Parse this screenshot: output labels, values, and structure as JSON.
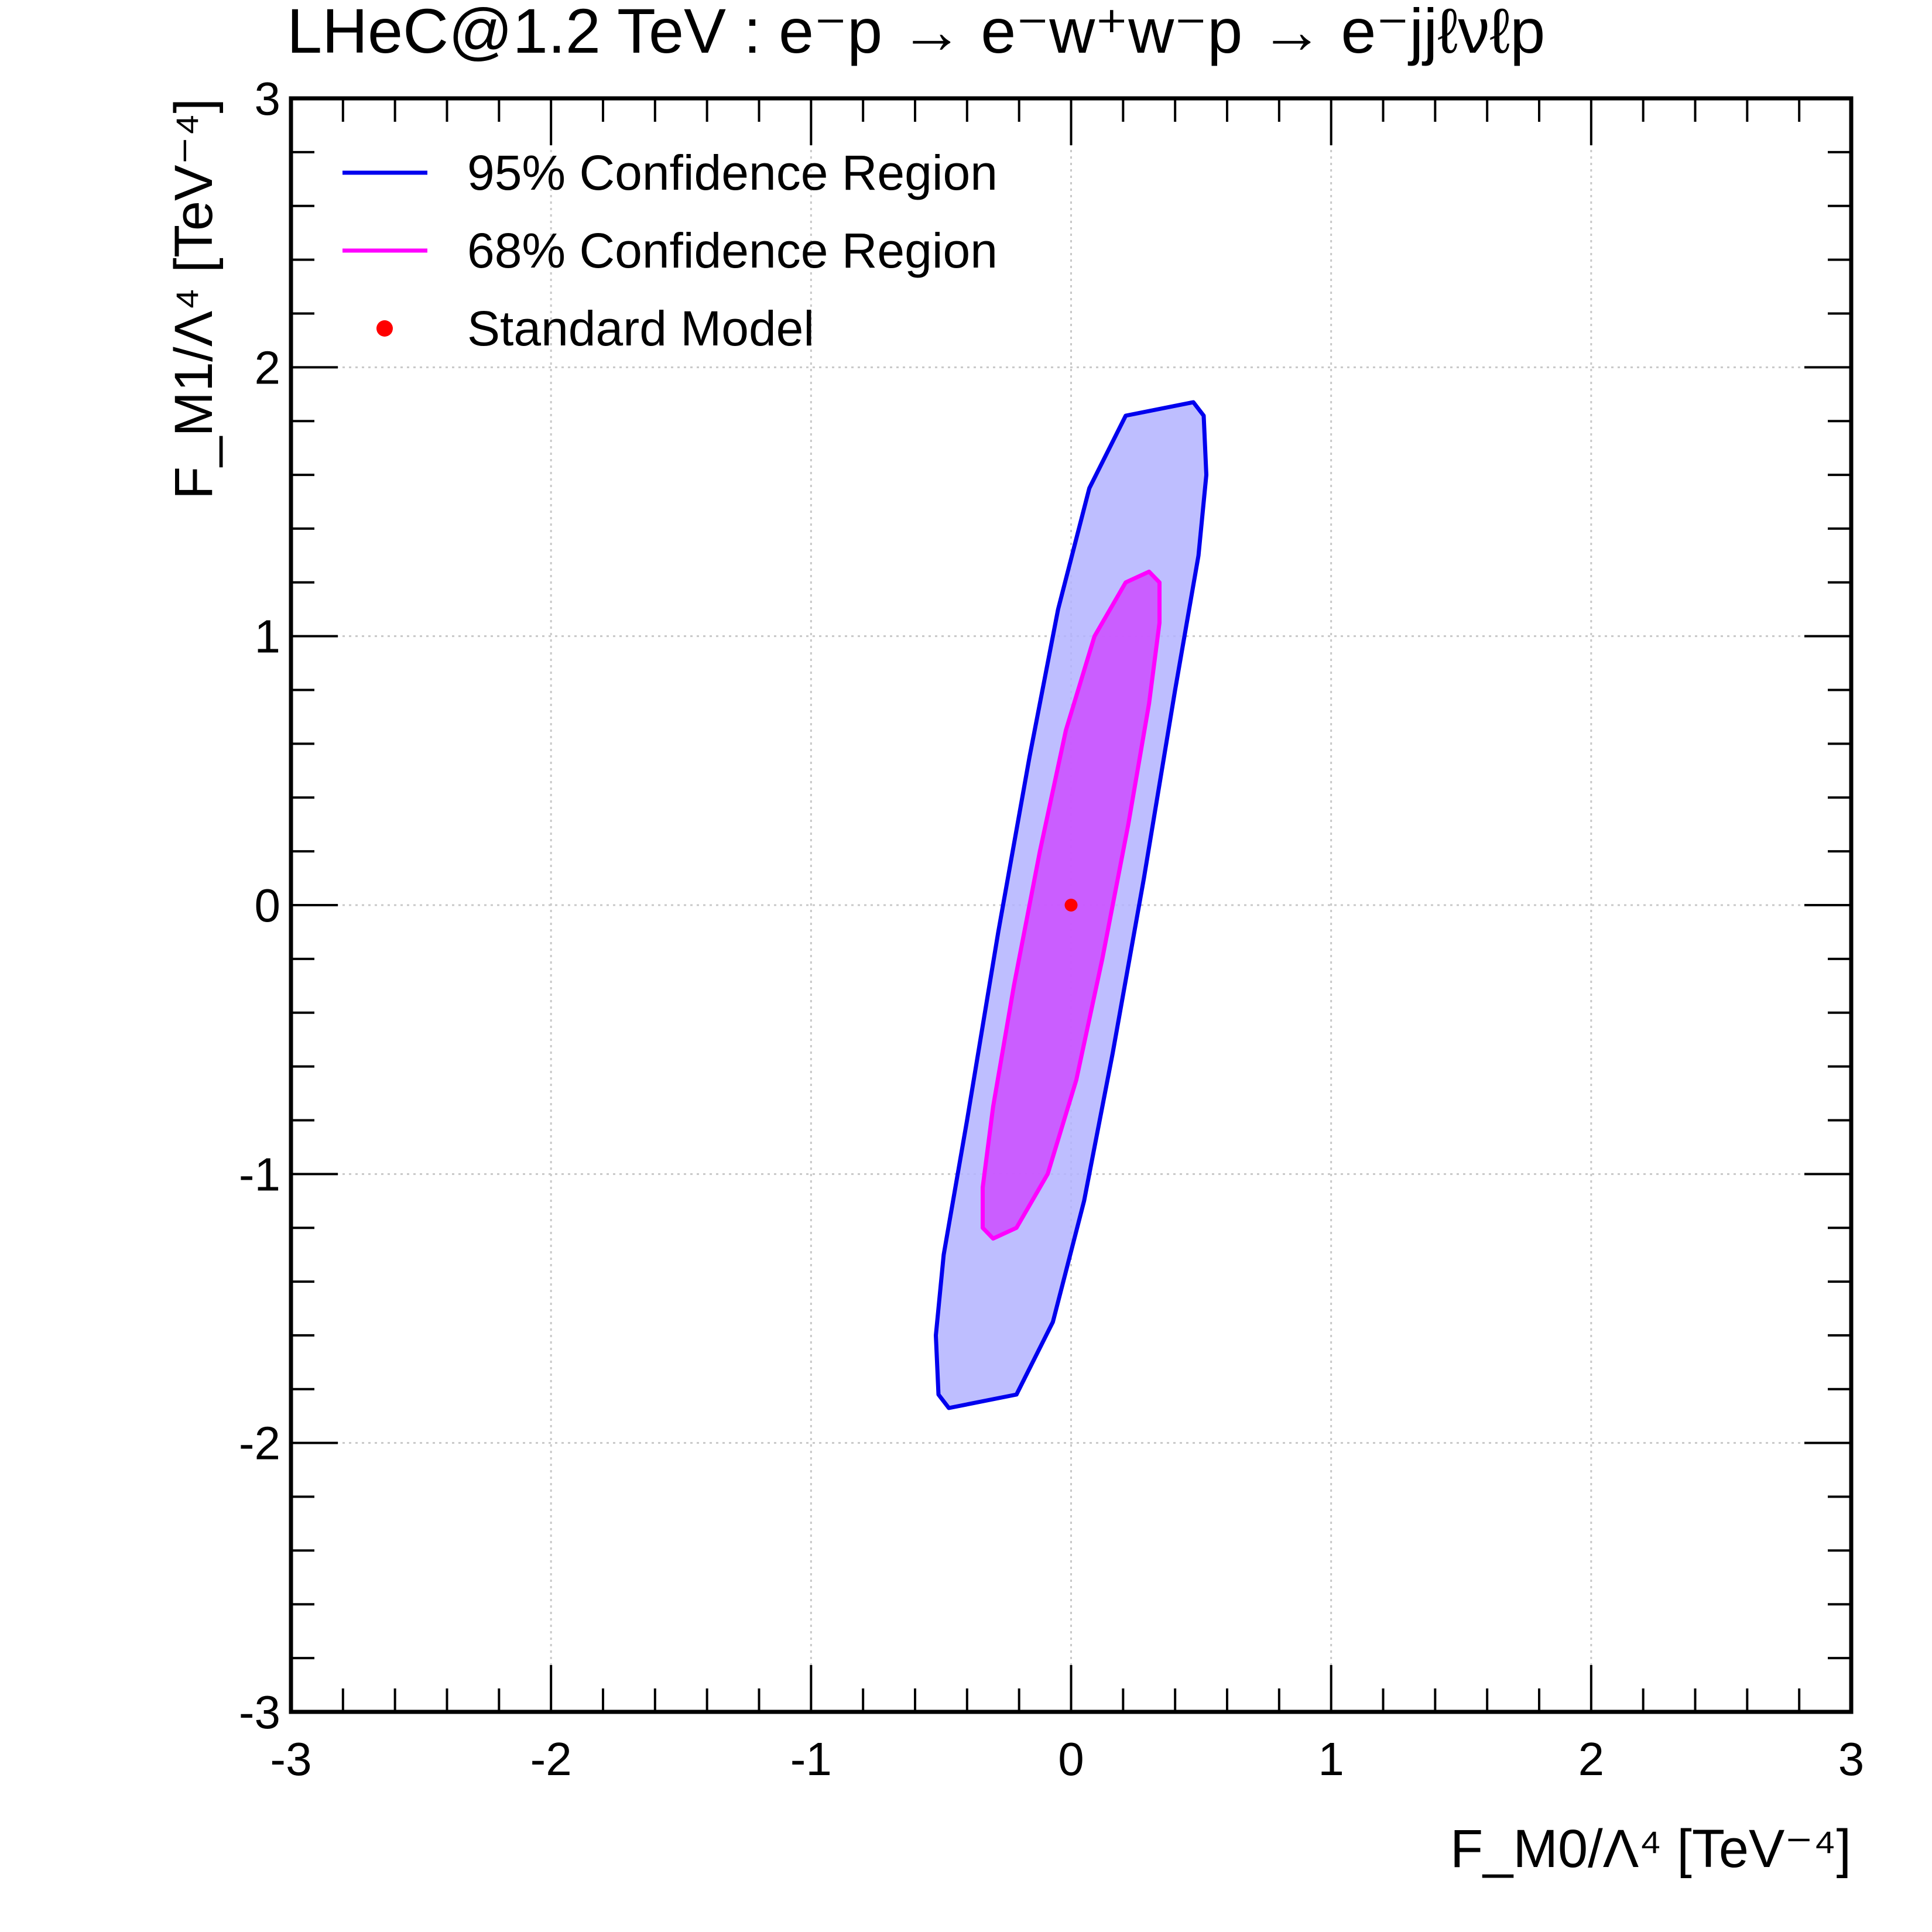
{
  "chart_data": {
    "type": "contour",
    "title": "LHeC@1.2 TeV : e⁻p → e⁻w⁺w⁻p → e⁻jjℓνℓp",
    "xlabel": "F_M0/Λ⁴ [TeV⁻⁴]",
    "ylabel": "F_M1/Λ⁴ [TeV⁻⁴]",
    "xlim": [
      -3,
      3
    ],
    "ylim": [
      -3,
      3
    ],
    "xticks": [
      -3,
      -2,
      -1,
      0,
      1,
      2,
      3
    ],
    "yticks": [
      -3,
      -2,
      -1,
      0,
      1,
      2,
      3
    ],
    "tick_labels": [
      "-3",
      "-2",
      "-1",
      "0",
      "1",
      "2",
      "3"
    ],
    "grid": true,
    "legend_position": "top-left",
    "series": [
      {
        "name": "95% Confidence Region",
        "line_color": "#0000ee",
        "fill_color": "#b3b3ff",
        "points": [
          [
            0.47,
            1.87
          ],
          [
            0.51,
            1.82
          ],
          [
            0.52,
            1.6
          ],
          [
            0.49,
            1.3
          ],
          [
            0.4,
            0.8
          ],
          [
            0.28,
            0.1
          ],
          [
            0.16,
            -0.55
          ],
          [
            0.05,
            -1.1
          ],
          [
            -0.07,
            -1.55
          ],
          [
            -0.21,
            -1.82
          ],
          [
            -0.47,
            -1.87
          ],
          [
            -0.51,
            -1.82
          ],
          [
            -0.52,
            -1.6
          ],
          [
            -0.49,
            -1.3
          ],
          [
            -0.4,
            -0.8
          ],
          [
            -0.28,
            -0.1
          ],
          [
            -0.16,
            0.55
          ],
          [
            -0.05,
            1.1
          ],
          [
            0.07,
            1.55
          ],
          [
            0.21,
            1.82
          ]
        ]
      },
      {
        "name": "68% Confidence Region",
        "line_color": "#ff00ff",
        "fill_color": "#cc4dff",
        "points": [
          [
            0.3,
            1.24
          ],
          [
            0.34,
            1.2
          ],
          [
            0.34,
            1.05
          ],
          [
            0.3,
            0.75
          ],
          [
            0.22,
            0.3
          ],
          [
            0.12,
            -0.2
          ],
          [
            0.02,
            -0.65
          ],
          [
            -0.09,
            -1.0
          ],
          [
            -0.21,
            -1.2
          ],
          [
            -0.3,
            -1.24
          ],
          [
            -0.34,
            -1.2
          ],
          [
            -0.34,
            -1.05
          ],
          [
            -0.3,
            -0.75
          ],
          [
            -0.22,
            -0.3
          ],
          [
            -0.12,
            0.2
          ],
          [
            -0.02,
            0.65
          ],
          [
            0.09,
            1.0
          ],
          [
            0.21,
            1.2
          ]
        ]
      },
      {
        "name": "Standard Model",
        "marker_color": "#ff0000",
        "points": [
          [
            0,
            0
          ]
        ]
      }
    ]
  }
}
